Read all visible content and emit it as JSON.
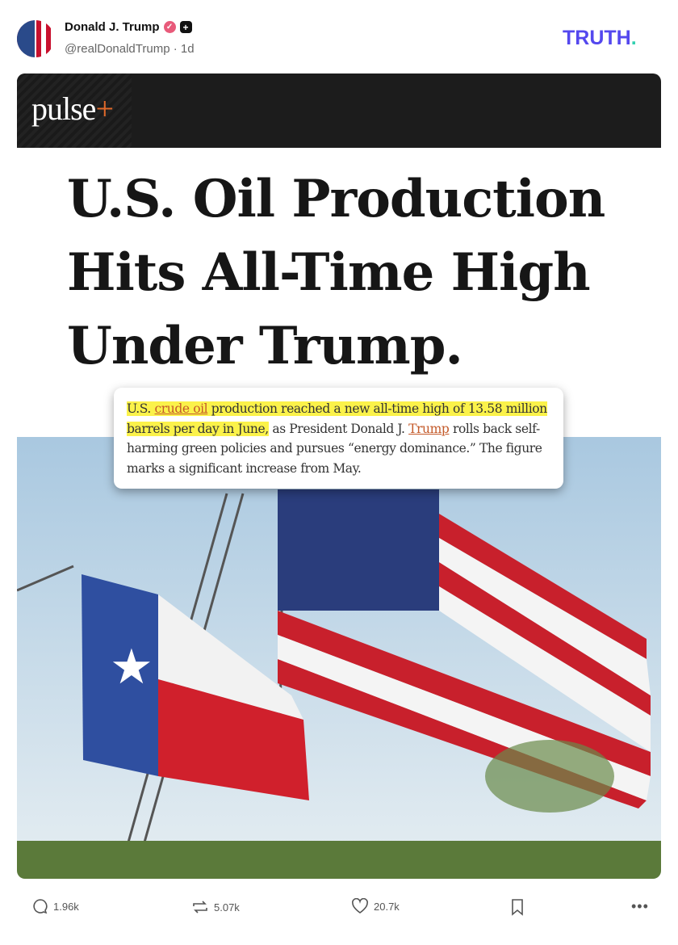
{
  "post": {
    "author": "Donald J. Trump",
    "handle": "@realDonaldTrump · 1d",
    "verified_icon": "check-badge-icon",
    "plus_icon": "plus-badge-icon"
  },
  "brand": {
    "logo_main": "TRUTH",
    "logo_dot": ".",
    "accent": "#5448ee"
  },
  "image": {
    "publisher_main": "pulse",
    "publisher_plus": "+",
    "headline": [
      "U.S. Oil Production",
      "Hits All-Time High",
      "Under Trump."
    ],
    "callout": {
      "p1": "U.S. ",
      "link1": "crude oil",
      "p2": " production reached a new all-time high of 13.58 million barrels per day in June,",
      "p3": " as President Donald J. ",
      "link2": "Trump",
      "p4": " rolls back self-harming green policies and pursues “energy dominance.” The figure marks a significant increase from May."
    }
  },
  "actions": {
    "replies": "1.96k",
    "reposts": "5.07k",
    "likes": "20.7k"
  }
}
